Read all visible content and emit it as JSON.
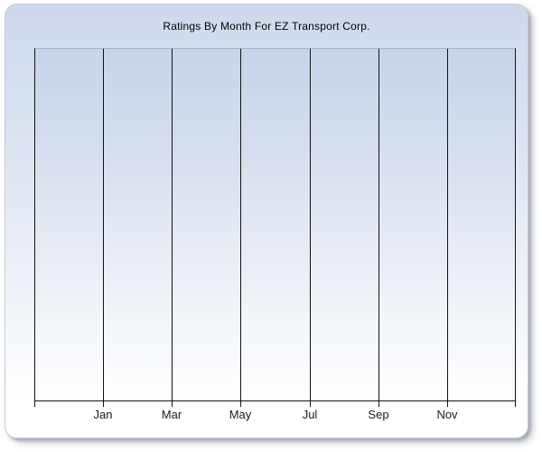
{
  "chart": {
    "title": "Ratings By Month For EZ Transport Corp."
  },
  "chart_data": {
    "type": "line",
    "title": "Ratings By Month For EZ Transport Corp.",
    "categories": [
      "Jan",
      "Mar",
      "May",
      "Jul",
      "Sep",
      "Nov"
    ],
    "series": [],
    "xlabel": "",
    "ylabel": "",
    "x_tick_interval_months": 2,
    "grid": "vertical-gridlines-only",
    "legend": "none",
    "plot_empty": true
  },
  "colors": {
    "panel_top": "#cdd9ec",
    "panel_bottom": "#ffffff",
    "plot_top": "#c7d4e8",
    "plot_bottom": "#fdfeff",
    "gridline": "#121212",
    "plot_top_border": "#a4aebf",
    "axis": "#121212",
    "title_text": "#000000",
    "label_text": "#1a1a1a",
    "shadow": "#9ea2ad"
  }
}
